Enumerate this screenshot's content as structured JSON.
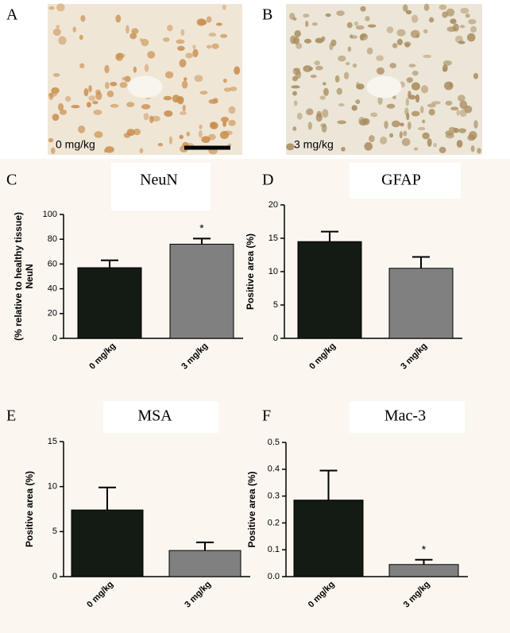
{
  "images": [
    {
      "panel_label": "A",
      "label": "0 mg/kg"
    },
    {
      "panel_label": "B",
      "label": "3 mg/kg"
    }
  ],
  "chart_data": [
    {
      "type": "bar",
      "panel_label": "C",
      "title": "NeuN",
      "ylabel": [
        "NeuN",
        "(% relative to healthy tissue)"
      ],
      "categories": [
        "0 mg/kg",
        "3 mg/kg"
      ],
      "values": [
        57,
        76
      ],
      "errors": [
        6,
        4.5
      ],
      "star_labels": [
        null,
        "*"
      ],
      "colors": [
        "#141a14",
        "#808080"
      ],
      "ylim": [
        0,
        100
      ],
      "yticks": [
        0,
        20,
        40,
        60,
        80,
        100
      ]
    },
    {
      "type": "bar",
      "panel_label": "D",
      "title": "GFAP",
      "ylabel": [
        "Positive area (%)"
      ],
      "categories": [
        "0 mg/kg",
        "3 mg/kg"
      ],
      "values": [
        14.5,
        10.5
      ],
      "errors": [
        1.5,
        1.7
      ],
      "star_labels": [
        null,
        null
      ],
      "colors": [
        "#141a14",
        "#808080"
      ],
      "ylim": [
        0,
        20
      ],
      "yticks": [
        0,
        5,
        10,
        15,
        20
      ]
    },
    {
      "type": "bar",
      "panel_label": "E",
      "title": "MSA",
      "ylabel": [
        "Positive area (%)"
      ],
      "categories": [
        "0 mg/kg",
        "3 mg/kg"
      ],
      "values": [
        7.4,
        2.9
      ],
      "errors": [
        2.5,
        0.9
      ],
      "star_labels": [
        null,
        null
      ],
      "colors": [
        "#141a14",
        "#808080"
      ],
      "ylim": [
        0,
        15
      ],
      "yticks": [
        0,
        5,
        10,
        15
      ]
    },
    {
      "type": "bar",
      "panel_label": "F",
      "title": "Mac-3",
      "ylabel": [
        "Positive area (%)"
      ],
      "categories": [
        "0 mg/kg",
        "3 mg/kg"
      ],
      "values": [
        0.285,
        0.045
      ],
      "errors": [
        0.11,
        0.018
      ],
      "star_labels": [
        null,
        "*"
      ],
      "colors": [
        "#141a14",
        "#808080"
      ],
      "ylim": [
        0,
        0.5
      ],
      "yticks": [
        {
          "value": 0,
          "label": "0.0"
        },
        0.1,
        0.2,
        0.3,
        0.4,
        0.5
      ]
    }
  ]
}
